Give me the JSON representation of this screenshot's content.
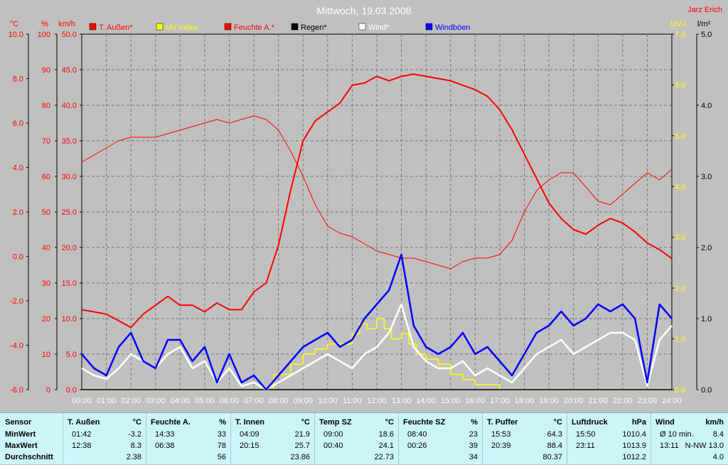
{
  "chart_data": {
    "type": "line",
    "title": "Mittwoch, 19.03.2008",
    "author": "Jarz Erich",
    "x_ticks": [
      "00:00",
      "01:00",
      "02:00",
      "03:00",
      "04:00",
      "05:00",
      "06:00",
      "07:00",
      "08:00",
      "09:00",
      "10:00",
      "11:00",
      "12:00",
      "13:00",
      "14:00",
      "15:00",
      "16:00",
      "17:00",
      "18:00",
      "19:00",
      "20:00",
      "21:00",
      "22:00",
      "23:00",
      "24:00"
    ],
    "axes": {
      "temp_c": {
        "unit": "°C",
        "min": -6,
        "max": 10,
        "ticks": [
          "10.0",
          "8.0",
          "6.0",
          "4.0",
          "2.0",
          "0.0",
          "-2.0",
          "-4.0",
          "-6.0"
        ]
      },
      "humidity_pct": {
        "unit": "%",
        "min": 0,
        "max": 100,
        "ticks": [
          "100",
          "90",
          "80",
          "70",
          "60",
          "50",
          "40",
          "30",
          "20",
          "10",
          "0"
        ]
      },
      "wind_kmh": {
        "unit": "km/h",
        "min": 0,
        "max": 50,
        "ticks": [
          "50.0",
          "45.0",
          "40.0",
          "35.0",
          "30.0",
          "25.0",
          "20.0",
          "15.0",
          "10.0",
          "5.0",
          "0.0"
        ]
      },
      "uv": {
        "unit": "UV-I",
        "min": 0,
        "max": 7,
        "ticks": [
          "7.0",
          "6.0",
          "5.0",
          "4.0",
          "3.0",
          "2.0",
          "1.0",
          "0.0"
        ]
      },
      "rain_lm2": {
        "unit": "l/m²",
        "min": 0,
        "max": 5,
        "ticks": [
          "5.0",
          "4.0",
          "3.0",
          "2.0",
          "1.0",
          "0.0"
        ]
      }
    },
    "legend": [
      {
        "label": "T. Außen*",
        "color": "#ff0000"
      },
      {
        "label": "UV Index",
        "color": "#ffff00"
      },
      {
        "label": "Feuchte A.*",
        "color": "#ff0000"
      },
      {
        "label": "Regen*",
        "color": "#000000"
      },
      {
        "label": "Wind*",
        "color": "#ffffff"
      },
      {
        "label": "Windböen",
        "color": "#0000ff"
      }
    ],
    "series": [
      {
        "name": "T. Außen*",
        "axis": "temp_c",
        "color": "#ff0000",
        "x": [
          0,
          0.5,
          1,
          1.5,
          2,
          2.5,
          3,
          3.5,
          4,
          4.5,
          5,
          5.5,
          6,
          6.5,
          7,
          7.5,
          8,
          8.5,
          9,
          9.5,
          10,
          10.5,
          11,
          11.5,
          12,
          12.5,
          13,
          13.5,
          14,
          14.5,
          15,
          15.5,
          16,
          16.5,
          17,
          17.5,
          18,
          18.5,
          19,
          19.5,
          20,
          20.5,
          21,
          21.5,
          22,
          22.5,
          23,
          23.5,
          24
        ],
        "y": [
          -2.4,
          -2.5,
          -2.6,
          -2.9,
          -3.2,
          -2.6,
          -2.2,
          -1.8,
          -2.2,
          -2.2,
          -2.5,
          -2.1,
          -2.4,
          -2.4,
          -1.6,
          -1.2,
          0.5,
          3,
          5.2,
          6.1,
          6.5,
          6.9,
          7.7,
          7.8,
          8.1,
          7.9,
          8.1,
          8.2,
          8.1,
          8.0,
          7.9,
          7.7,
          7.5,
          7.2,
          6.6,
          5.7,
          4.6,
          3.5,
          2.4,
          1.7,
          1.2,
          1.0,
          1.4,
          1.7,
          1.5,
          1.1,
          0.6,
          0.3,
          -0.1
        ]
      },
      {
        "name": "Feuchte A.*",
        "axis": "humidity_pct",
        "color": "#ff0000",
        "x": [
          0,
          0.5,
          1,
          1.5,
          2,
          2.5,
          3,
          3.5,
          4,
          4.5,
          5,
          5.5,
          6,
          6.5,
          7,
          7.5,
          8,
          8.5,
          9,
          9.5,
          10,
          10.5,
          11,
          11.5,
          12,
          12.5,
          13,
          13.5,
          14,
          14.5,
          15,
          15.5,
          16,
          16.5,
          17,
          17.5,
          18,
          18.5,
          19,
          19.5,
          20,
          20.5,
          21,
          21.5,
          22,
          22.5,
          23,
          23.5,
          24
        ],
        "y": [
          64,
          66,
          68,
          70,
          71,
          71,
          71,
          72,
          73,
          74,
          75,
          76,
          75,
          76,
          77,
          76,
          73,
          67,
          60,
          52,
          46,
          44,
          43,
          41,
          39,
          38,
          37,
          37,
          36,
          35,
          34,
          36,
          37,
          37,
          38,
          42,
          50,
          56,
          59,
          61,
          61,
          57,
          53,
          52,
          55,
          58,
          61,
          59,
          62
        ]
      },
      {
        "name": "UV Index",
        "axis": "uv",
        "color": "#ffff00",
        "x": [
          0,
          7.5,
          7.8,
          8.5,
          9,
          9.5,
          10,
          10.5,
          11,
          11.3,
          11.6,
          12,
          12.3,
          12.6,
          13,
          13.3,
          13.6,
          14,
          14.5,
          15,
          15.5,
          16,
          16.5,
          17,
          24
        ],
        "y": [
          0,
          0,
          0.3,
          0.5,
          0.7,
          0.8,
          0.9,
          0.9,
          1.1,
          1.3,
          1.2,
          1.4,
          1.2,
          1.0,
          1.1,
          0.9,
          0.7,
          0.6,
          0.5,
          0.3,
          0.2,
          0.1,
          0.1,
          0,
          0
        ]
      },
      {
        "name": "Regen*",
        "axis": "rain_lm2",
        "color": "#000000",
        "x": [
          0,
          24
        ],
        "y": [
          0,
          0
        ]
      },
      {
        "name": "Wind*",
        "axis": "wind_kmh",
        "color": "#ffffff",
        "x": [
          0,
          0.5,
          1,
          1.5,
          2,
          2.5,
          3,
          3.5,
          4,
          4.5,
          5,
          5.5,
          6,
          6.5,
          7,
          7.5,
          8,
          8.5,
          9,
          9.5,
          10,
          10.5,
          11,
          11.5,
          12,
          12.5,
          13,
          13.5,
          14,
          14.5,
          15,
          15.5,
          16,
          16.5,
          17,
          17.5,
          18,
          18.5,
          19,
          19.5,
          20,
          20.5,
          21,
          21.5,
          22,
          22.5,
          23,
          23.5,
          24
        ],
        "y": [
          3,
          2,
          1.5,
          3,
          5,
          4,
          3,
          5,
          6,
          3,
          4,
          1,
          3,
          0.5,
          1,
          0,
          1,
          2,
          3,
          4,
          5,
          4,
          3,
          5,
          6,
          8,
          12,
          6,
          4,
          3,
          3,
          4,
          2,
          3,
          2,
          1,
          3,
          5,
          6,
          7,
          5,
          6,
          7,
          8,
          8,
          7,
          0.5,
          7,
          9
        ]
      },
      {
        "name": "Windböen",
        "axis": "wind_kmh",
        "color": "#0000ff",
        "x": [
          0,
          0.5,
          1,
          1.5,
          2,
          2.5,
          3,
          3.5,
          4,
          4.5,
          5,
          5.5,
          6,
          6.5,
          7,
          7.5,
          8,
          8.5,
          9,
          9.5,
          10,
          10.5,
          11,
          11.5,
          12,
          12.5,
          13,
          13.5,
          14,
          14.5,
          15,
          15.5,
          16,
          16.5,
          17,
          17.5,
          18,
          18.5,
          19,
          19.5,
          20,
          20.5,
          21,
          21.5,
          22,
          22.5,
          23,
          23.5,
          24
        ],
        "y": [
          5,
          3,
          2,
          6,
          8,
          4,
          3,
          7,
          7,
          4,
          6,
          1,
          5,
          1,
          2,
          0,
          2,
          4,
          6,
          7,
          8,
          6,
          7,
          10,
          12,
          14,
          19,
          9,
          6,
          5,
          6,
          8,
          5,
          6,
          4,
          2,
          5,
          8,
          9,
          11,
          9,
          10,
          12,
          11,
          12,
          10,
          1,
          12,
          10
        ]
      }
    ]
  },
  "stats": {
    "row_labels": [
      "Sensor",
      "MinWert",
      "MaxWert",
      "Durchschnitt"
    ],
    "columns": [
      {
        "name": "T. Außen",
        "unit": "°C",
        "min_time": "01:42",
        "min_val": "-3.2",
        "max_time": "12:38",
        "max_val": "8.3",
        "avg": "2.38"
      },
      {
        "name": "Feuchte A.",
        "unit": "%",
        "min_time": "14:33",
        "min_val": "33",
        "max_time": "06:38",
        "max_val": "78",
        "avg": "56"
      },
      {
        "name": "T. Innen",
        "unit": "°C",
        "min_time": "04:09",
        "min_val": "21.9",
        "max_time": "20:15",
        "max_val": "25.7",
        "avg": "23.86"
      },
      {
        "name": "Temp SZ",
        "unit": "°C",
        "min_time": "09:00",
        "min_val": "18.6",
        "max_time": "00:40",
        "max_val": "24.1",
        "avg": "22.73"
      },
      {
        "name": "Feuchte SZ",
        "unit": "%",
        "min_time": "08:40",
        "min_val": "23",
        "max_time": "00:26",
        "max_val": "39",
        "avg": "34"
      },
      {
        "name": "T. Puffer",
        "unit": "°C",
        "min_time": "15:53",
        "min_val": "64.3",
        "max_time": "20:39",
        "max_val": "88.4",
        "avg": "80.37"
      },
      {
        "name": "Luftdruck",
        "unit": "hPa",
        "min_time": "15:50",
        "min_val": "1010.4",
        "max_time": "23:11",
        "max_val": "1013.9",
        "avg": "1012.2"
      },
      {
        "name": "Wind",
        "unit": "km/h",
        "min_time": "Ø 10 min.",
        "min_val": "8.4",
        "max_time": "13:11",
        "max_val": "N-NW 13.0",
        "avg": "4.0"
      }
    ]
  }
}
